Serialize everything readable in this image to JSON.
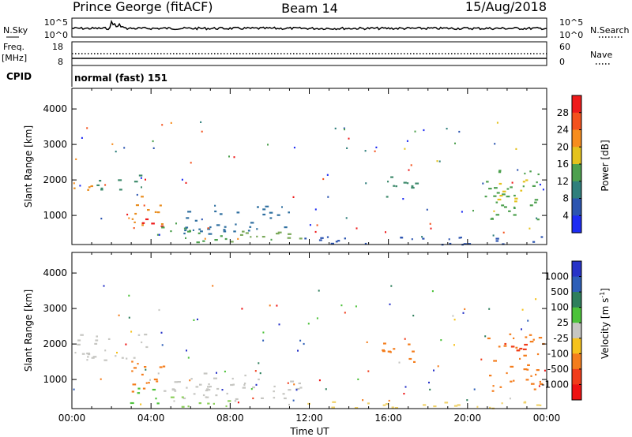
{
  "header": {
    "station": "Prince George (fitACF)",
    "beam": "Beam 14",
    "date": "15/Aug/2018"
  },
  "noise_panel": {
    "left_label": "N.Sky",
    "right_label": "N.Search",
    "left_ticks": [
      "10^5",
      "10^0"
    ],
    "right_ticks": [
      "10^5",
      "10^0"
    ]
  },
  "freq_panel": {
    "left_label": "Freq.",
    "left_unit": "[MHz]",
    "right_label": "Nave",
    "left_ticks": [
      "18",
      "8"
    ],
    "right_ticks": [
      "60",
      "0"
    ]
  },
  "cpid": {
    "label": "CPID",
    "value": "normal (fast) 151"
  },
  "chart_data": [
    {
      "type": "heatmap",
      "name": "power",
      "ylabel": "Slant Range [km]",
      "yticks": [
        "1000",
        "2000",
        "3000",
        "4000"
      ],
      "ylim": [
        180,
        4580
      ],
      "xlim_hours": [
        0,
        24
      ],
      "colorbar_label": "Power [dB]",
      "colorbar_ticks": [
        "28",
        "24",
        "20",
        "16",
        "12",
        "8",
        "4"
      ],
      "colorbar_colors": [
        "#ee1b1b",
        "#f4521d",
        "#f78d1e",
        "#e4c21d",
        "#4da04e",
        "#2f7f7c",
        "#2b54b0",
        "#1d2bf3"
      ],
      "echo_regions": [
        {
          "t0": 0.0,
          "t1": 1.6,
          "r0": 1650,
          "r1": 1950,
          "color": "#e98d1f"
        },
        {
          "t0": 1.2,
          "t1": 3.8,
          "r0": 1750,
          "r1": 2150,
          "color": "#3e8a6c"
        },
        {
          "t0": 3.0,
          "t1": 4.6,
          "r0": 700,
          "r1": 1600,
          "color": "#e98d1f"
        },
        {
          "t0": 3.4,
          "t1": 4.8,
          "r0": 620,
          "r1": 1000,
          "color": "#ee1b1b"
        },
        {
          "t0": 4.2,
          "t1": 8.0,
          "r0": 260,
          "r1": 700,
          "color": "#4da04e"
        },
        {
          "t0": 5.6,
          "t1": 11.0,
          "r0": 500,
          "r1": 1300,
          "color": "#2f6fa0"
        },
        {
          "t0": 8.0,
          "t1": 12.0,
          "r0": 250,
          "r1": 600,
          "color": "#7aa95a"
        },
        {
          "t0": 11.0,
          "t1": 24.0,
          "r0": 200,
          "r1": 420,
          "color": "#2b54b0"
        },
        {
          "t0": 15.6,
          "t1": 17.4,
          "r0": 1450,
          "r1": 2150,
          "color": "#3e8a6c"
        },
        {
          "t0": 20.8,
          "t1": 23.6,
          "r0": 900,
          "r1": 2300,
          "color": "#4da04e"
        },
        {
          "t0": 21.4,
          "t1": 23.0,
          "r0": 1400,
          "r1": 2100,
          "color": "#e4c21d"
        }
      ]
    },
    {
      "type": "heatmap",
      "name": "velocity",
      "ylabel": "Slant Range [km]",
      "yticks": [
        "1000",
        "2000",
        "3000",
        "4000"
      ],
      "ylim": [
        180,
        4580
      ],
      "xlim_hours": [
        0,
        24
      ],
      "xticks": [
        "00:00",
        "04:00",
        "08:00",
        "12:00",
        "16:00",
        "20:00",
        "00:00"
      ],
      "xlabel": "Time UT",
      "colorbar_label": "Velocity [m s",
      "colorbar_label_sup": "-1",
      "colorbar_label_end": "]",
      "colorbar_ticks": [
        "1000",
        "500",
        "100",
        "25",
        "-25",
        "-100",
        "-500",
        "-1000"
      ],
      "colorbar_colors": [
        "#2733c8",
        "#2e5fb8",
        "#2e7f5c",
        "#4cc23a",
        "#c6c6c2",
        "#f6c21c",
        "#f47d1c",
        "#f03c1a",
        "#ee1111"
      ],
      "echo_regions": [
        {
          "t0": 0.0,
          "t1": 3.8,
          "r0": 1550,
          "r1": 2300,
          "color": "#c6c6c2"
        },
        {
          "t0": 3.0,
          "t1": 4.7,
          "r0": 650,
          "r1": 1700,
          "color": "#f47d1c"
        },
        {
          "t0": 2.8,
          "t1": 4.4,
          "r0": 350,
          "r1": 800,
          "color": "#4cc23a"
        },
        {
          "t0": 4.2,
          "t1": 11.6,
          "r0": 400,
          "r1": 1200,
          "color": "#c6c6c2"
        },
        {
          "t0": 4.8,
          "t1": 8.0,
          "r0": 250,
          "r1": 600,
          "color": "#8bcf5a"
        },
        {
          "t0": 11.0,
          "t1": 24.0,
          "r0": 200,
          "r1": 400,
          "color": "#f0d26a"
        },
        {
          "t0": 15.6,
          "t1": 17.4,
          "r0": 1500,
          "r1": 2150,
          "color": "#f47d1c"
        },
        {
          "t0": 21.0,
          "t1": 23.8,
          "r0": 700,
          "r1": 2300,
          "color": "#f47d1c"
        },
        {
          "t0": 21.6,
          "t1": 23.0,
          "r0": 1700,
          "r1": 2200,
          "color": "#f03c1a"
        }
      ]
    }
  ]
}
